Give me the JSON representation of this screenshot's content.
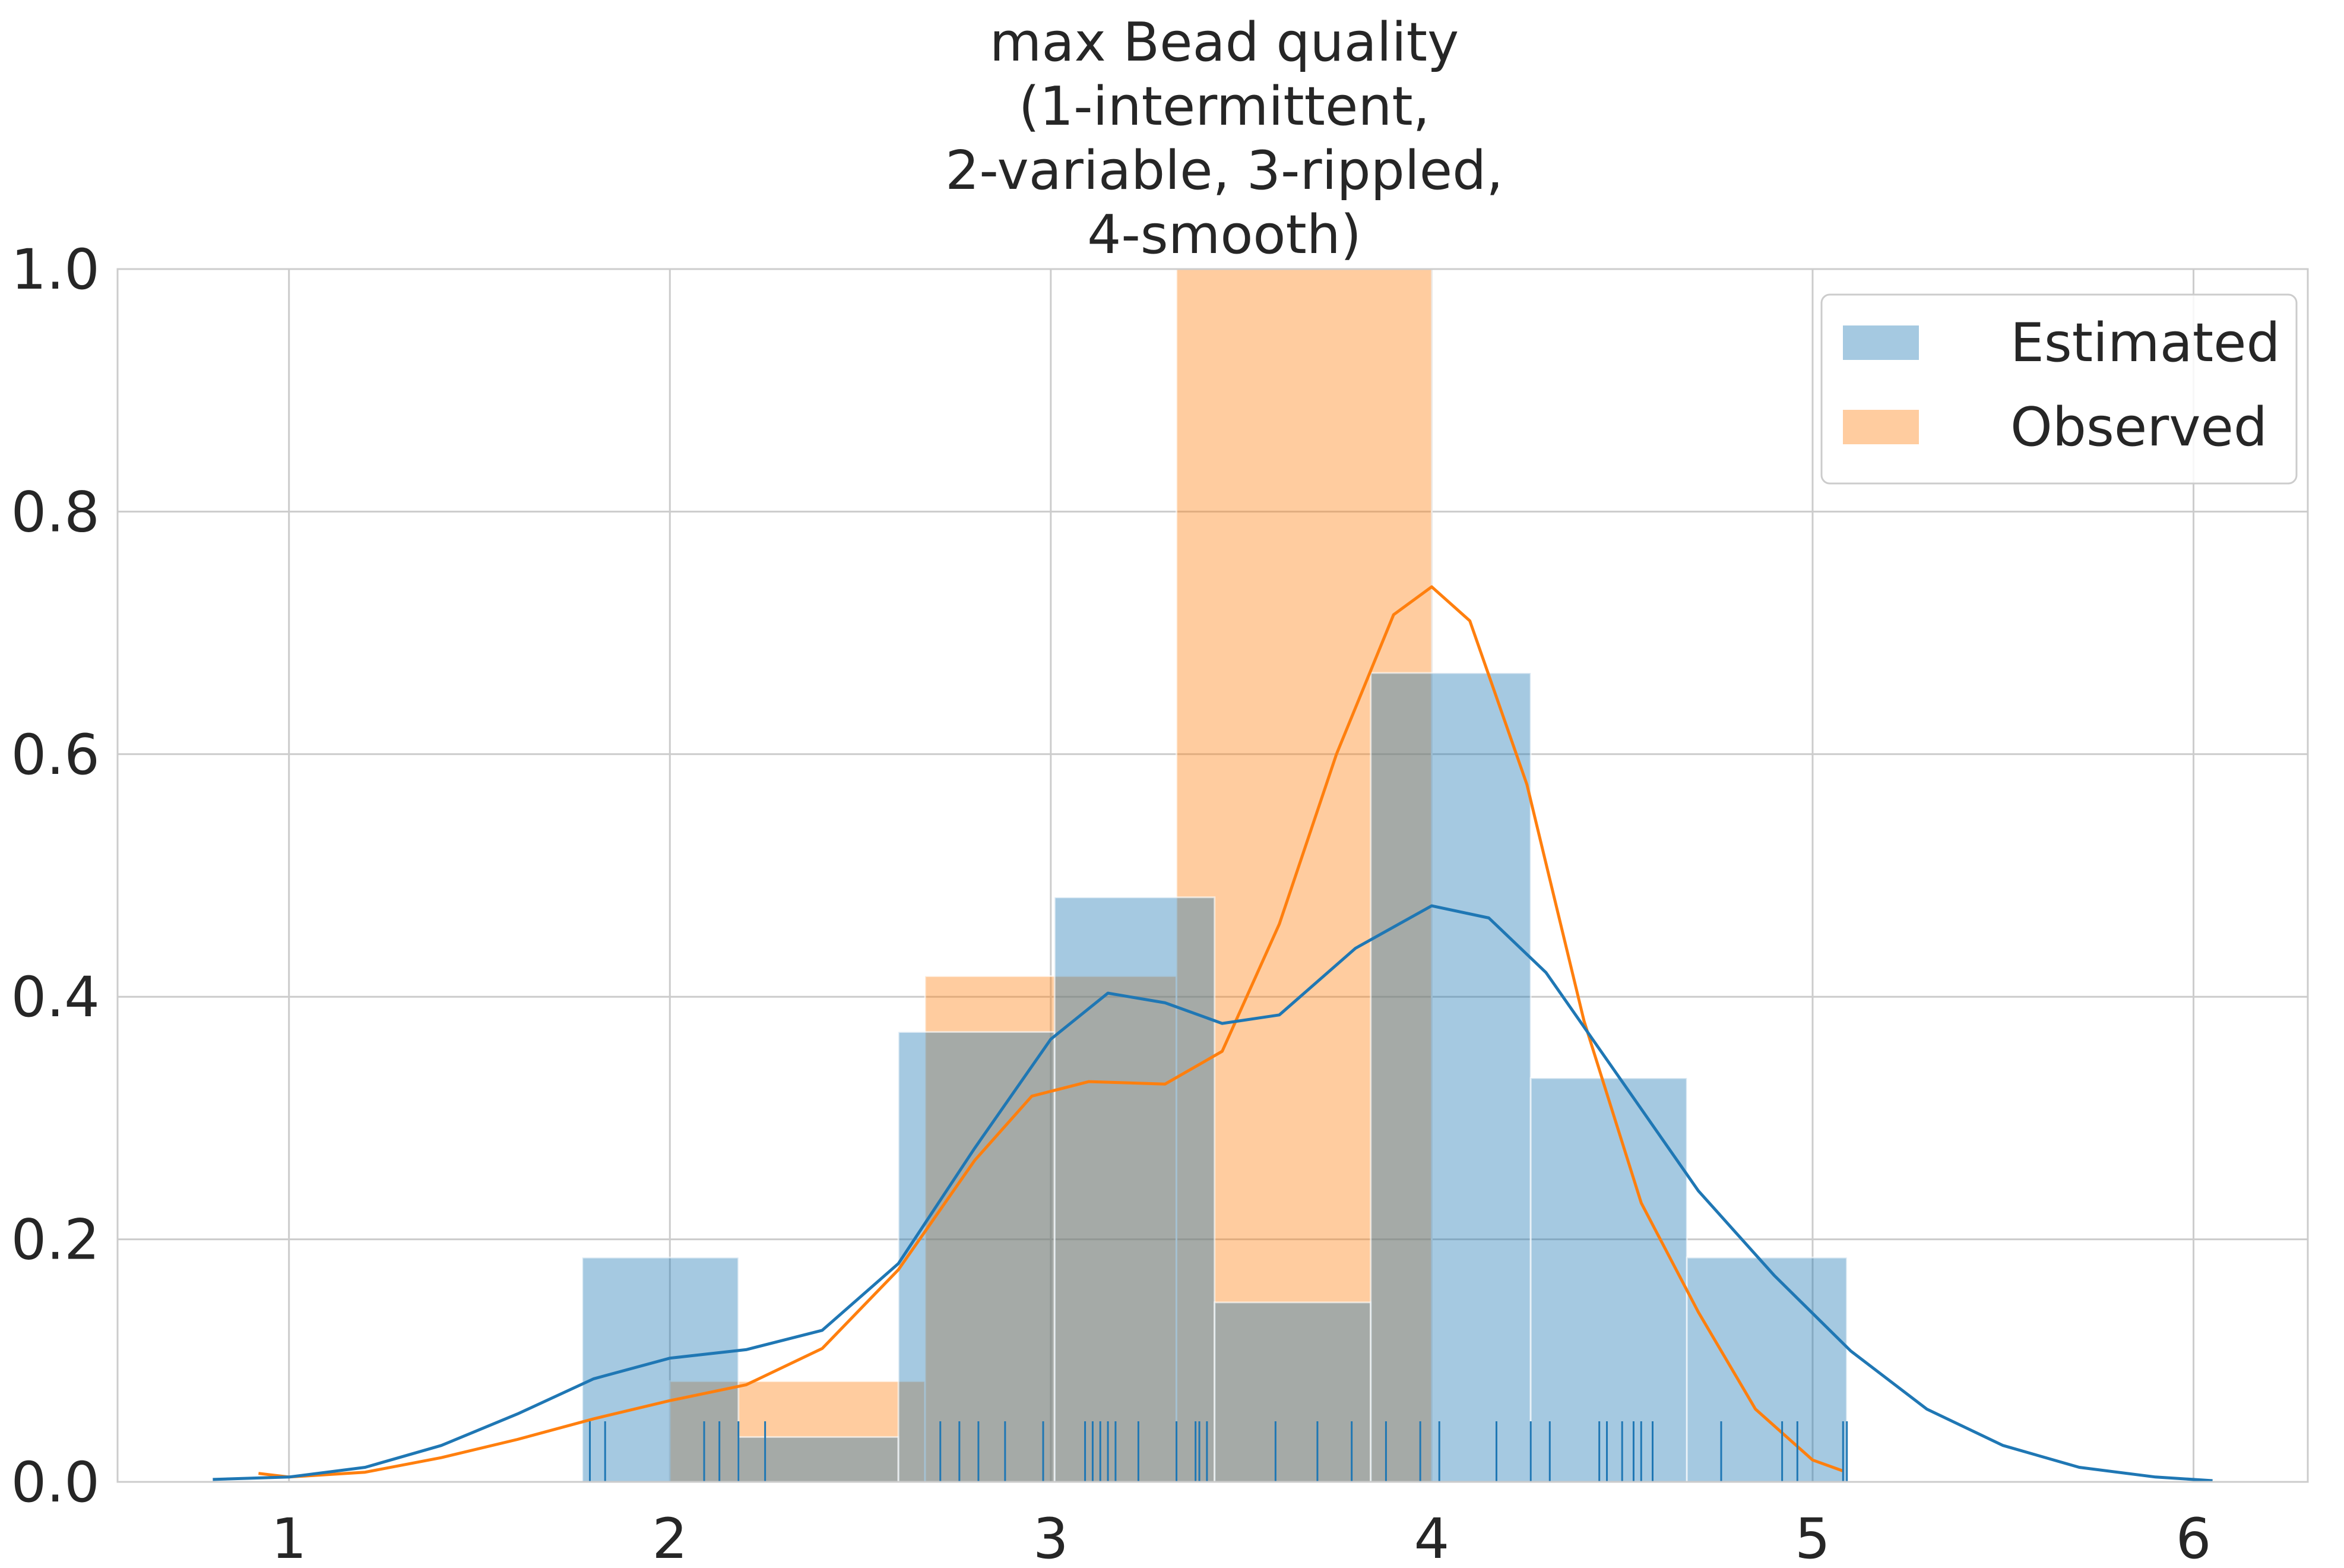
{
  "chart_data": {
    "type": "histogram",
    "title_lines": [
      "max Bead quality",
      "(1-intermittent,",
      "2-variable, 3-rippled,",
      "4-smooth)"
    ],
    "xlabel": "",
    "ylabel": "",
    "xlim": [
      0.55,
      6.3
    ],
    "ylim": [
      0,
      1.0
    ],
    "xticks": [
      1,
      2,
      3,
      4,
      5,
      6
    ],
    "xtick_labels": [
      "1",
      "2",
      "3",
      "4",
      "5",
      "6"
    ],
    "yticks": [
      0.0,
      0.2,
      0.4,
      0.6,
      0.8,
      1.0
    ],
    "ytick_labels": [
      "0.0",
      "0.2",
      "0.4",
      "0.6",
      "0.8",
      "1.0"
    ],
    "grid": true,
    "legend_position": "top-right",
    "series": [
      {
        "name": "Estimated",
        "color": "#1f77b4",
        "bins": [
          {
            "x0": 1.77,
            "x1": 2.18,
            "value": 0.185
          },
          {
            "x0": 2.18,
            "x1": 2.6,
            "value": 0.037
          },
          {
            "x0": 2.6,
            "x1": 3.01,
            "value": 0.371
          },
          {
            "x0": 3.01,
            "x1": 3.43,
            "value": 0.482
          },
          {
            "x0": 3.43,
            "x1": 3.84,
            "value": 0.148
          },
          {
            "x0": 3.84,
            "x1": 4.26,
            "value": 0.667
          },
          {
            "x0": 4.26,
            "x1": 4.67,
            "value": 0.333
          },
          {
            "x0": 4.67,
            "x1": 5.09,
            "value": 0.185
          }
        ],
        "kde": [
          [
            0.8,
            0.002
          ],
          [
            1.0,
            0.004
          ],
          [
            1.2,
            0.012
          ],
          [
            1.4,
            0.03
          ],
          [
            1.6,
            0.056
          ],
          [
            1.8,
            0.085
          ],
          [
            2.0,
            0.102
          ],
          [
            2.2,
            0.109
          ],
          [
            2.4,
            0.125
          ],
          [
            2.6,
            0.18
          ],
          [
            2.8,
            0.275
          ],
          [
            3.0,
            0.365
          ],
          [
            3.15,
            0.403
          ],
          [
            3.3,
            0.395
          ],
          [
            3.45,
            0.378
          ],
          [
            3.6,
            0.385
          ],
          [
            3.8,
            0.44
          ],
          [
            4.0,
            0.475
          ],
          [
            4.15,
            0.465
          ],
          [
            4.3,
            0.42
          ],
          [
            4.5,
            0.33
          ],
          [
            4.7,
            0.24
          ],
          [
            4.9,
            0.17
          ],
          [
            5.1,
            0.108
          ],
          [
            5.3,
            0.06
          ],
          [
            5.5,
            0.03
          ],
          [
            5.7,
            0.012
          ],
          [
            5.9,
            0.004
          ],
          [
            6.05,
            0.001
          ]
        ],
        "rug": [
          1.79,
          1.83,
          2.09,
          2.13,
          2.18,
          2.25,
          2.71,
          2.76,
          2.81,
          2.88,
          2.98,
          3.09,
          3.11,
          3.13,
          3.15,
          3.17,
          3.23,
          3.33,
          3.38,
          3.39,
          3.41,
          3.59,
          3.7,
          3.79,
          3.88,
          3.97,
          4.02,
          4.17,
          4.26,
          4.31,
          4.44,
          4.46,
          4.5,
          4.53,
          4.55,
          4.58,
          4.76,
          4.92,
          4.96,
          5.08,
          5.09
        ]
      },
      {
        "name": "Observed",
        "color": "#ff7f0e",
        "bins": [
          {
            "x0": 2.0,
            "x1": 2.67,
            "value": 0.083
          },
          {
            "x0": 2.67,
            "x1": 3.33,
            "value": 0.417
          },
          {
            "x0": 3.33,
            "x1": 4.0,
            "value": 1.0
          }
        ],
        "kde": [
          [
            0.92,
            0.007
          ],
          [
            1.0,
            0.004
          ],
          [
            1.2,
            0.008
          ],
          [
            1.4,
            0.02
          ],
          [
            1.6,
            0.035
          ],
          [
            1.8,
            0.052
          ],
          [
            2.0,
            0.067
          ],
          [
            2.2,
            0.08
          ],
          [
            2.4,
            0.11
          ],
          [
            2.6,
            0.175
          ],
          [
            2.8,
            0.265
          ],
          [
            2.95,
            0.318
          ],
          [
            3.1,
            0.33
          ],
          [
            3.3,
            0.328
          ],
          [
            3.45,
            0.355
          ],
          [
            3.6,
            0.46
          ],
          [
            3.75,
            0.6
          ],
          [
            3.9,
            0.715
          ],
          [
            4.0,
            0.738
          ],
          [
            4.1,
            0.71
          ],
          [
            4.25,
            0.575
          ],
          [
            4.4,
            0.38
          ],
          [
            4.55,
            0.23
          ],
          [
            4.7,
            0.14
          ],
          [
            4.85,
            0.06
          ],
          [
            5.0,
            0.018
          ],
          [
            5.08,
            0.009
          ]
        ],
        "rug": []
      }
    ]
  }
}
